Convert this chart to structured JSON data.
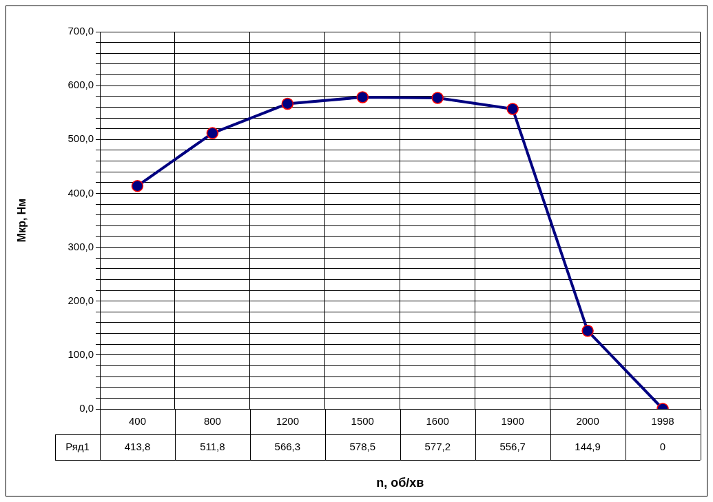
{
  "chart_data": {
    "type": "line",
    "xlabel": "n, об/хв",
    "ylabel": "Мкр, Нм",
    "categories": [
      "400",
      "800",
      "1200",
      "1500",
      "1600",
      "1900",
      "2000",
      "1998"
    ],
    "series": [
      {
        "name": "Ряд1",
        "color": "#000080",
        "values": [
          413.8,
          511.8,
          566.3,
          578.5,
          577.2,
          556.7,
          144.9,
          0
        ],
        "value_labels": [
          "413,8",
          "511,8",
          "566,3",
          "578,5",
          "577,2",
          "556,7",
          "144,9",
          "0"
        ]
      }
    ],
    "ylim": [
      0,
      700
    ],
    "yticks": [
      {
        "value": 0,
        "label": "0,0"
      },
      {
        "value": 20,
        "label": null
      },
      {
        "value": 40,
        "label": null
      },
      {
        "value": 60,
        "label": null
      },
      {
        "value": 80,
        "label": null
      },
      {
        "value": 100,
        "label": "100,0"
      },
      {
        "value": 120,
        "label": null
      },
      {
        "value": 140,
        "label": null
      },
      {
        "value": 160,
        "label": null
      },
      {
        "value": 180,
        "label": null
      },
      {
        "value": 200,
        "label": "200,0"
      },
      {
        "value": 220,
        "label": null
      },
      {
        "value": 240,
        "label": null
      },
      {
        "value": 260,
        "label": null
      },
      {
        "value": 280,
        "label": null
      },
      {
        "value": 300,
        "label": "300,0"
      },
      {
        "value": 320,
        "label": null
      },
      {
        "value": 340,
        "label": null
      },
      {
        "value": 360,
        "label": null
      },
      {
        "value": 380,
        "label": null
      },
      {
        "value": 400,
        "label": "400,0"
      },
      {
        "value": 420,
        "label": null
      },
      {
        "value": 440,
        "label": null
      },
      {
        "value": 460,
        "label": null
      },
      {
        "value": 480,
        "label": null
      },
      {
        "value": 500,
        "label": "500,0"
      },
      {
        "value": 520,
        "label": null
      },
      {
        "value": 540,
        "label": null
      },
      {
        "value": 560,
        "label": null
      },
      {
        "value": 580,
        "label": null
      },
      {
        "value": 600,
        "label": "600,0"
      },
      {
        "value": 620,
        "label": null
      },
      {
        "value": 640,
        "label": null
      },
      {
        "value": 660,
        "label": null
      },
      {
        "value": 680,
        "label": null
      },
      {
        "value": 700,
        "label": "700,0"
      }
    ],
    "grid": true,
    "legend": false,
    "marker": "circle",
    "line_style": "solid"
  }
}
